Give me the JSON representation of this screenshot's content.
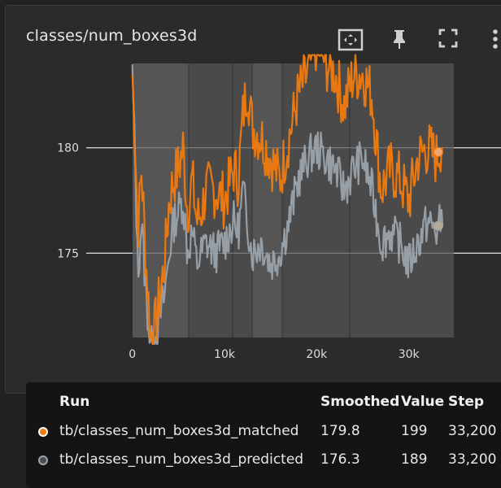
{
  "card": {
    "title": "classes/num_boxes3d"
  },
  "toolbar": [
    "fit-domain-icon",
    "pin-icon",
    "fullscreen-icon",
    "more-vert-icon"
  ],
  "colors": {
    "matched": "#f07b0f",
    "predicted": "#9aa3ab"
  },
  "chart_data": {
    "type": "line",
    "xlabel": "",
    "ylabel": "",
    "xlim": [
      -5000,
      40000
    ],
    "ylim": [
      171,
      184
    ],
    "xticks": [
      0,
      10000,
      20000,
      30000
    ],
    "xtick_labels": [
      "0",
      "10k",
      "20k",
      "30k"
    ],
    "yticks": [
      175,
      180
    ],
    "ytick_labels": [
      "175",
      "180"
    ],
    "grid": false,
    "series": [
      {
        "name": "tb/classes_num_boxes3d_matched",
        "color": "#f07b0f",
        "x": [
          0,
          300,
          600,
          1000,
          1500,
          2000,
          2500,
          3000,
          3500,
          4000,
          4500,
          5000,
          5500,
          6000,
          6500,
          7000,
          7500,
          8000,
          9000,
          10000,
          11000,
          11500,
          12000,
          12500,
          13000,
          14000,
          15000,
          16000,
          17000,
          18000,
          19000,
          20000,
          21000,
          22000,
          23000,
          24000,
          25000,
          26000,
          27000,
          28000,
          29000,
          30000,
          31000,
          32000,
          33000,
          33700
        ],
        "y": [
          183.5,
          180.5,
          176,
          179,
          174.5,
          171,
          171.5,
          173,
          174.5,
          177.5,
          178.5,
          179,
          180,
          177,
          178.5,
          176.5,
          177,
          178,
          178,
          177.5,
          179,
          178.5,
          181.5,
          183,
          181,
          180.5,
          179.5,
          178.5,
          180.5,
          182.5,
          183.5,
          185,
          184,
          183.5,
          182,
          183.5,
          183.5,
          182.5,
          178,
          179,
          178.5,
          177.5,
          179.5,
          180,
          179.5,
          180.5
        ]
      },
      {
        "name": "tb/classes_num_boxes3d_predicted",
        "color": "#9aa3ab",
        "x": [
          0,
          300,
          600,
          1000,
          1500,
          2000,
          2500,
          3000,
          3500,
          4000,
          4500,
          5000,
          5500,
          6000,
          6500,
          7000,
          7500,
          8000,
          9000,
          10000,
          11000,
          11500,
          12000,
          12500,
          13000,
          14000,
          15000,
          16000,
          17000,
          18000,
          19000,
          20000,
          21000,
          22000,
          23000,
          24000,
          25000,
          26000,
          27000,
          28000,
          29000,
          30000,
          31000,
          32000,
          33000,
          33700
        ],
        "y": [
          183.5,
          179.5,
          174,
          176.5,
          173,
          170.5,
          171,
          172,
          173,
          175,
          176.5,
          177,
          177.5,
          175,
          176,
          174.5,
          175,
          175.5,
          175,
          175.5,
          176.5,
          176,
          178,
          176.5,
          175,
          175.5,
          174.5,
          175,
          176.5,
          178.5,
          179.5,
          180,
          179.5,
          179,
          178,
          179,
          179.5,
          178,
          175.5,
          176,
          175.5,
          174.5,
          175.5,
          176.5,
          176,
          176.8
        ]
      }
    ],
    "markers": [
      {
        "series": 0,
        "x": 33200,
        "y": 179.8
      },
      {
        "series": 1,
        "x": 33200,
        "y": 176.3
      }
    ],
    "raw_traces": [
      {
        "series": 0,
        "seed": 7,
        "amp": 1.4
      },
      {
        "series": 1,
        "seed": 13,
        "amp": 1.0
      }
    ]
  },
  "legend": {
    "headers": {
      "run": "Run",
      "smoothed": "Smoothed",
      "value": "Value",
      "step": "Step"
    },
    "rows": [
      {
        "run": "tb/classes_num_boxes3d_matched",
        "smoothed": "179.8",
        "value": "199",
        "step": "33,200"
      },
      {
        "run": "tb/classes_num_boxes3d_predicted",
        "smoothed": "176.3",
        "value": "189",
        "step": "33,200"
      }
    ]
  }
}
